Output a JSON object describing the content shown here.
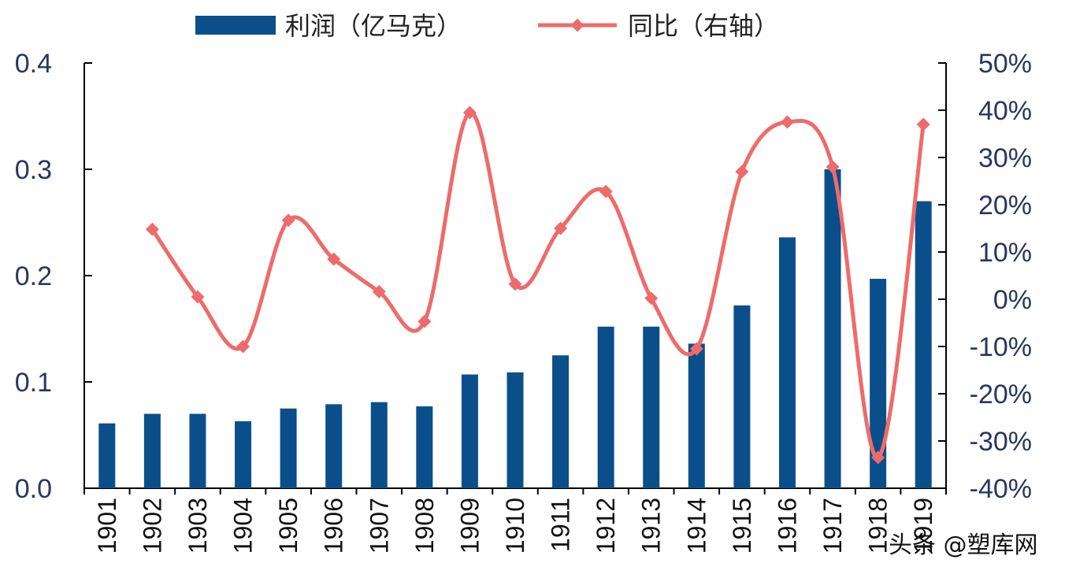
{
  "chart_data": {
    "type": "bar+line",
    "categories": [
      "1901",
      "1902",
      "1903",
      "1904",
      "1905",
      "1906",
      "1907",
      "1908",
      "1909",
      "1910",
      "1911",
      "1912",
      "1913",
      "1914",
      "1915",
      "1916",
      "1917",
      "1918",
      "1919"
    ],
    "series": [
      {
        "name": "利润（亿马克）",
        "type": "bar",
        "axis": "left",
        "color": "#0b4f8a",
        "values": [
          0.061,
          0.07,
          0.07,
          0.063,
          0.075,
          0.079,
          0.081,
          0.077,
          0.107,
          0.109,
          0.125,
          0.152,
          0.152,
          0.136,
          0.172,
          0.236,
          0.3,
          0.197,
          0.27
        ]
      },
      {
        "name": "同比（右轴）",
        "type": "line",
        "axis": "right",
        "color": "#ee6b6b",
        "values": [
          null,
          0.148,
          0.005,
          -0.1,
          0.167,
          0.085,
          0.016,
          -0.047,
          0.395,
          0.032,
          0.15,
          0.228,
          0.002,
          -0.105,
          0.27,
          0.375,
          0.28,
          -0.335,
          0.37
        ]
      }
    ],
    "left_axis": {
      "min": 0,
      "max": 0.4,
      "ticks": [
        "0.0",
        "0.1",
        "0.2",
        "0.3",
        "0.4"
      ]
    },
    "right_axis": {
      "min": -0.4,
      "max": 0.5,
      "ticks": [
        "-40%",
        "-30%",
        "-20%",
        "-10%",
        "0%",
        "10%",
        "20%",
        "30%",
        "40%",
        "50%"
      ]
    },
    "legend": {
      "position": "top-center",
      "items": [
        "利润（亿马克）",
        "同比（右轴）"
      ]
    },
    "title": "",
    "xlabel": "",
    "ylabel": ""
  },
  "watermark": "头条 @塑库网"
}
